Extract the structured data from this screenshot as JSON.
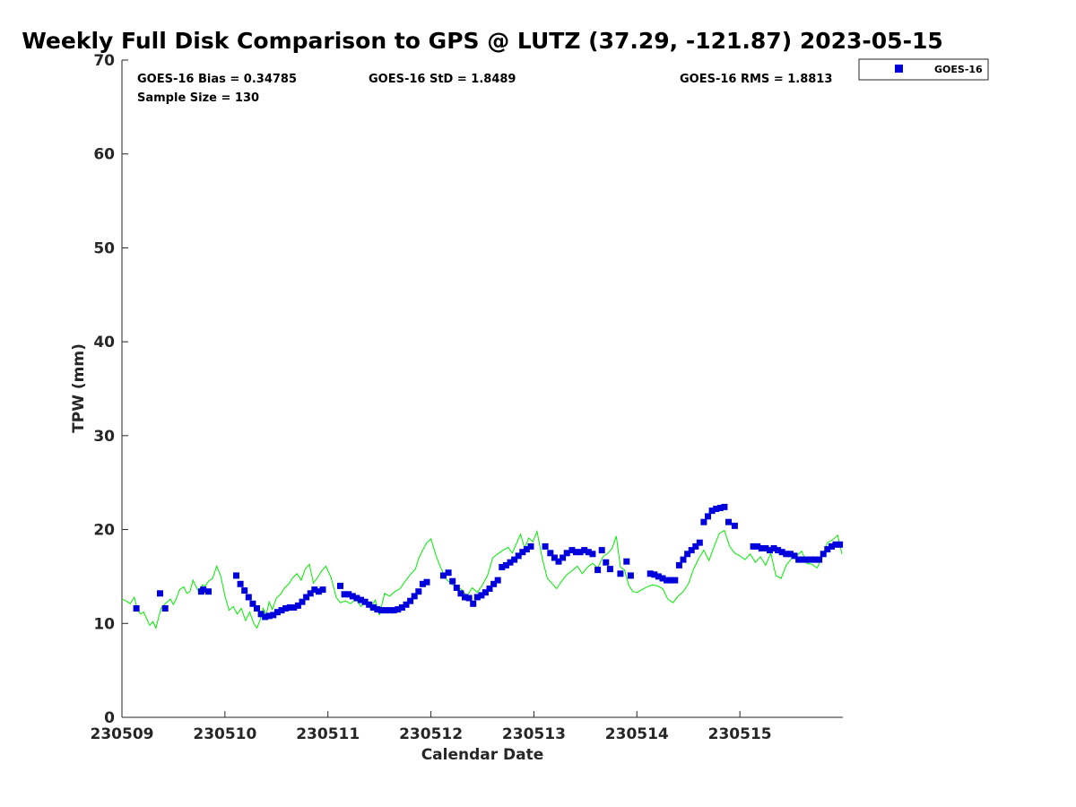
{
  "chart_data": {
    "type": "scatter",
    "title": "Weekly Full Disk Comparison to GPS @ LUTZ (37.29, -121.87) 2023-05-15",
    "xlabel": "Calendar Date",
    "ylabel": "TPW (mm)",
    "xlim": [
      230509,
      230516
    ],
    "ylim": [
      0,
      70
    ],
    "xticks": [
      "230509",
      "230510",
      "230511",
      "230512",
      "230513",
      "230514",
      "230515"
    ],
    "yticks": [
      "0",
      "10",
      "20",
      "30",
      "40",
      "50",
      "60",
      "70"
    ],
    "grid": false,
    "legend_placement": "outside-top-right",
    "stats": {
      "bias": "GOES-16 Bias = 0.34785",
      "std": "GOES-16 StD = 1.8489",
      "rms": "GOES-16 RMS = 1.8813",
      "sample": "Sample Size = 130"
    },
    "colors": {
      "goes": "#0000dd",
      "gps": "#00ee00"
    },
    "series": [
      {
        "name": "GOES-16",
        "marker": "square",
        "color": "#0000dd",
        "x": [
          230509.14,
          230509.37,
          230509.42,
          230509.77,
          230509.79,
          230509.84,
          230510.11,
          230510.15,
          230510.19,
          230510.23,
          230510.27,
          230510.31,
          230510.35,
          230510.39,
          230510.43,
          230510.47,
          230510.51,
          230510.55,
          230510.59,
          230510.63,
          230510.67,
          230510.71,
          230510.75,
          230510.79,
          230510.83,
          230510.87,
          230510.91,
          230510.95,
          230511.12,
          230511.16,
          230511.2,
          230511.24,
          230511.28,
          230511.32,
          230511.36,
          230511.4,
          230511.44,
          230511.48,
          230511.52,
          230511.56,
          230511.6,
          230511.64,
          230511.68,
          230511.72,
          230511.76,
          230511.8,
          230511.84,
          230511.88,
          230511.92,
          230511.96,
          230512.12,
          230512.17,
          230512.21,
          230512.25,
          230512.29,
          230512.33,
          230512.37,
          230512.41,
          230512.45,
          230512.49,
          230512.53,
          230512.57,
          230512.61,
          230512.65,
          230512.69,
          230512.73,
          230512.77,
          230512.81,
          230512.85,
          230512.89,
          230512.93,
          230512.97,
          230513.11,
          230513.16,
          230513.2,
          230513.24,
          230513.28,
          230513.32,
          230513.37,
          230513.41,
          230513.45,
          230513.49,
          230513.53,
          230513.57,
          230513.62,
          230513.66,
          230513.7,
          230513.74,
          230513.84,
          230513.9,
          230513.94,
          230514.13,
          230514.17,
          230514.21,
          230514.25,
          230514.29,
          230514.33,
          230514.37,
          230514.41,
          230514.45,
          230514.49,
          230514.53,
          230514.57,
          230514.61,
          230514.65,
          230514.69,
          230514.73,
          230514.77,
          230514.81,
          230514.85,
          230514.89,
          230514.95,
          230515.13,
          230515.17,
          230515.21,
          230515.25,
          230515.29,
          230515.33,
          230515.37,
          230515.41,
          230515.45,
          230515.49,
          230515.53,
          230515.57,
          230515.61,
          230515.65,
          230515.69,
          230515.73,
          230515.77,
          230515.81,
          230515.85,
          230515.89,
          230515.93,
          230515.97
        ],
        "y": [
          11.6,
          13.2,
          11.6,
          13.4,
          13.6,
          13.4,
          15.1,
          14.2,
          13.5,
          12.8,
          12.1,
          11.6,
          11.0,
          10.7,
          10.8,
          10.9,
          11.2,
          11.4,
          11.6,
          11.7,
          11.7,
          11.9,
          12.3,
          12.8,
          13.2,
          13.6,
          13.4,
          13.6,
          14.0,
          13.1,
          13.1,
          12.9,
          12.7,
          12.5,
          12.3,
          12.0,
          11.7,
          11.5,
          11.4,
          11.4,
          11.4,
          11.4,
          11.5,
          11.7,
          12.0,
          12.4,
          12.9,
          13.4,
          14.2,
          14.4,
          15.1,
          15.4,
          14.5,
          13.8,
          13.2,
          12.8,
          12.7,
          12.1,
          12.8,
          13.0,
          13.3,
          13.7,
          14.2,
          14.6,
          16.0,
          16.2,
          16.5,
          16.8,
          17.2,
          17.6,
          17.9,
          18.2,
          18.2,
          17.5,
          17.0,
          16.6,
          17.0,
          17.5,
          17.8,
          17.6,
          17.6,
          17.8,
          17.6,
          17.4,
          15.7,
          17.8,
          16.5,
          15.8,
          15.3,
          16.6,
          15.1,
          15.3,
          15.2,
          15.0,
          14.8,
          14.6,
          14.6,
          14.6,
          16.2,
          16.8,
          17.4,
          17.8,
          18.2,
          18.6,
          20.8,
          21.4,
          22.0,
          22.2,
          22.3,
          22.4,
          20.8,
          20.4,
          18.2,
          18.2,
          18.0,
          18.0,
          17.8,
          18.0,
          17.8,
          17.6,
          17.4,
          17.4,
          17.2,
          16.8,
          16.8,
          16.8,
          16.8,
          16.8,
          16.8,
          17.4,
          17.9,
          18.2,
          18.4,
          18.4
        ]
      },
      {
        "name": "GPS",
        "color": "#00ee00",
        "x": [
          230509.0,
          230509.04,
          230509.08,
          230509.12,
          230509.15,
          230509.18,
          230509.21,
          230509.24,
          230509.27,
          230509.3,
          230509.33,
          230509.36,
          230509.38,
          230509.41,
          230509.44,
          230509.47,
          230509.5,
          230509.53,
          230509.56,
          230509.6,
          230509.63,
          230509.66,
          230509.69,
          230509.72,
          230509.75,
          230509.78,
          230509.81,
          230509.84,
          230509.88,
          230509.92,
          230509.96,
          230510.0,
          230510.04,
          230510.08,
          230510.12,
          230510.16,
          230510.2,
          230510.24,
          230510.28,
          230510.31,
          230510.34,
          230510.37,
          230510.4,
          230510.43,
          230510.46,
          230510.5,
          230510.54,
          230510.58,
          230510.62,
          230510.66,
          230510.7,
          230510.74,
          230510.78,
          230510.82,
          230510.86,
          230510.9,
          230510.94,
          230510.98,
          230511.03,
          230511.08,
          230511.12,
          230511.17,
          230511.22,
          230511.27,
          230511.32,
          230511.37,
          230511.41,
          230511.46,
          230511.5,
          230511.55,
          230511.6,
          230511.65,
          230511.7,
          230511.75,
          230511.8,
          230511.85,
          230511.88,
          230511.92,
          230511.96,
          230512.0,
          230512.05,
          230512.1,
          230512.15,
          230512.2,
          230512.25,
          230512.3,
          230512.35,
          230512.4,
          230512.45,
          230512.5,
          230512.55,
          230512.6,
          230512.65,
          230512.7,
          230512.75,
          230512.79,
          230512.83,
          230512.87,
          230512.91,
          230512.95,
          230512.99,
          230513.03,
          230513.08,
          230513.13,
          230513.18,
          230513.22,
          230513.27,
          230513.32,
          230513.37,
          230513.42,
          230513.47,
          230513.52,
          230513.57,
          230513.62,
          230513.67,
          230513.72,
          230513.76,
          230513.8,
          230513.84,
          230513.88,
          230513.92,
          230513.96,
          230514.0,
          230514.05,
          230514.1,
          230514.15,
          230514.2,
          230514.25,
          230514.3,
          230514.35,
          230514.4,
          230514.45,
          230514.5,
          230514.55,
          230514.6,
          230514.65,
          230514.7,
          230514.75,
          230514.8,
          230514.85,
          230514.9,
          230514.95,
          230515.0,
          230515.05,
          230515.1,
          230515.15,
          230515.2,
          230515.25,
          230515.3,
          230515.35,
          230515.4,
          230515.45,
          230515.5,
          230515.55,
          230515.6,
          230515.65,
          230515.7,
          230515.75,
          230515.8,
          230515.85,
          230515.9,
          230515.95,
          230515.99
        ],
        "y": [
          12.6,
          12.4,
          12.1,
          12.8,
          11.5,
          11.0,
          11.2,
          10.5,
          9.8,
          10.2,
          9.5,
          10.8,
          11.6,
          12.0,
          12.3,
          12.6,
          12.0,
          12.7,
          13.6,
          13.9,
          13.2,
          13.4,
          14.6,
          13.9,
          13.3,
          14.1,
          14.0,
          14.5,
          14.8,
          16.1,
          15.0,
          12.9,
          11.4,
          11.8,
          11.0,
          11.6,
          10.3,
          11.2,
          10.0,
          9.5,
          10.3,
          11.6,
          10.9,
          12.3,
          11.5,
          12.7,
          13.1,
          13.8,
          14.2,
          14.9,
          15.3,
          14.6,
          15.8,
          16.3,
          14.3,
          14.9,
          15.6,
          16.1,
          14.9,
          12.8,
          12.2,
          12.4,
          12.1,
          12.6,
          11.8,
          12.3,
          11.6,
          12.5,
          10.9,
          13.2,
          12.9,
          13.4,
          13.7,
          14.5,
          15.2,
          15.8,
          16.9,
          17.8,
          18.6,
          19.0,
          17.2,
          15.8,
          14.7,
          14.2,
          13.9,
          13.6,
          12.9,
          13.8,
          13.3,
          14.1,
          15.1,
          17.0,
          17.4,
          17.8,
          18.1,
          17.5,
          18.5,
          19.5,
          18.0,
          19.1,
          18.7,
          19.8,
          17.0,
          14.8,
          14.2,
          13.7,
          14.5,
          15.2,
          15.6,
          16.1,
          15.3,
          16.0,
          16.4,
          15.9,
          17.1,
          17.5,
          18.0,
          19.3,
          16.0,
          15.7,
          14.1,
          13.4,
          13.3,
          13.6,
          13.9,
          14.1,
          14.0,
          13.7,
          12.6,
          12.2,
          12.9,
          13.4,
          14.2,
          15.8,
          16.9,
          17.8,
          16.7,
          18.2,
          19.6,
          19.9,
          18.2,
          17.5,
          17.2,
          16.8,
          17.4,
          16.5,
          17.1,
          16.2,
          17.5,
          15.1,
          14.8,
          16.2,
          16.9,
          17.2,
          17.7,
          16.4,
          16.3,
          15.9,
          17.1,
          18.6,
          18.9,
          19.4,
          17.4
        ]
      }
    ]
  },
  "legend": {
    "label": "GOES-16"
  }
}
